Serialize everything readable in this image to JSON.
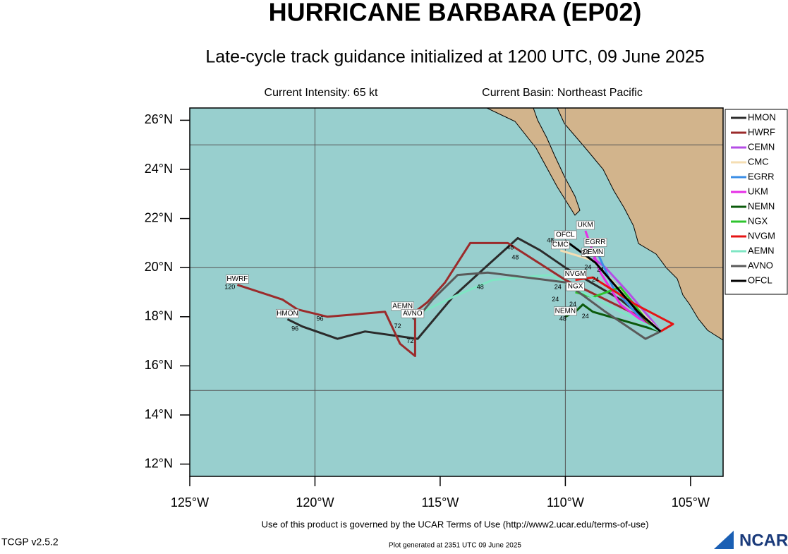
{
  "chart_data": {
    "type": "line",
    "title": "HURRICANE BARBARA (EP02)",
    "subtitle": "Late-cycle track guidance initialized at 1200 UTC, 09 June 2025",
    "info_left": "Current Intensity: 65 kt",
    "info_right": "Current Basin: Northeast Pacific",
    "footer": "Use of this product is governed by the UCAR Terms of Use (http://www2.ucar.edu/terms-of-use)",
    "version": "TCGP v2.5.2",
    "generated": "Plot generated at 2351 UTC   09 June 2025",
    "logo": "NCAR",
    "xlim": [
      -125,
      -103.7
    ],
    "ylim": [
      11.5,
      26.5
    ],
    "xticks": [
      {
        "value": -125,
        "label": "125°W"
      },
      {
        "value": -120,
        "label": "120°W"
      },
      {
        "value": -115,
        "label": "115°W"
      },
      {
        "value": -110,
        "label": "110°W"
      },
      {
        "value": -105,
        "label": "105°W"
      }
    ],
    "yticks": [
      {
        "value": 12,
        "label": "12°N"
      },
      {
        "value": 14,
        "label": "14°N"
      },
      {
        "value": 16,
        "label": "16°N"
      },
      {
        "value": 18,
        "label": "18°N"
      },
      {
        "value": 20,
        "label": "20°N"
      },
      {
        "value": 22,
        "label": "22°N"
      },
      {
        "value": 24,
        "label": "24°N"
      },
      {
        "value": 26,
        "label": "26°N"
      }
    ],
    "xgrid": [
      -120,
      -110
    ],
    "ygrid": [
      15,
      20,
      25
    ],
    "legend": "right",
    "series": [
      {
        "name": "HMON",
        "color": "#2b2b2b",
        "x": [
          -106.2,
          -107.8,
          -110.0,
          -111.0,
          -111.9,
          -113.1,
          -114.5,
          -115.9,
          -118.0,
          -119.1,
          -120.5,
          -121.1
        ],
        "values": [
          17.4,
          18.7,
          20.0,
          20.7,
          21.2,
          20.1,
          18.8,
          17.1,
          17.4,
          17.1,
          17.6,
          17.9
        ]
      },
      {
        "name": "HWRF",
        "color": "#9b2b2b",
        "x": [
          -106.2,
          -107.2,
          -108.6,
          -110.0,
          -112.3,
          -113.8,
          -114.8,
          -115.5,
          -116.0,
          -116.0,
          -116.6,
          -117.2,
          -119.5,
          -120.7,
          -121.3,
          -123.1
        ],
        "values": [
          17.4,
          18.1,
          18.8,
          19.5,
          21.0,
          21.0,
          19.4,
          18.6,
          18.2,
          16.4,
          16.9,
          18.2,
          18.0,
          18.3,
          18.7,
          19.3
        ]
      },
      {
        "name": "CEMN",
        "color": "#b44ee6",
        "x": [
          -106.2,
          -106.5,
          -107.5,
          -108.4,
          -108.9
        ],
        "values": [
          17.4,
          17.8,
          19.0,
          20.0,
          20.4
        ]
      },
      {
        "name": "CMC",
        "color": "#f5deb3",
        "x": [
          -106.2,
          -106.8,
          -107.8,
          -108.9,
          -110.2
        ],
        "values": [
          17.4,
          18.0,
          19.1,
          20.3,
          20.7
        ]
      },
      {
        "name": "EGRR",
        "color": "#3b8ee6",
        "x": [
          -106.2,
          -106.7,
          -108.1,
          -108.8
        ],
        "values": [
          17.4,
          17.6,
          19.2,
          20.8
        ]
      },
      {
        "name": "UKM",
        "color": "#e62ee6",
        "x": [
          -106.2,
          -106.5,
          -107.8,
          -108.6,
          -109.2
        ],
        "values": [
          17.4,
          17.5,
          18.5,
          19.8,
          21.5
        ]
      },
      {
        "name": "NEMN",
        "color": "#0b5a0b",
        "x": [
          -106.2,
          -107.2,
          -108.9,
          -109.3,
          -109.6,
          -110.0
        ],
        "values": [
          17.4,
          17.7,
          18.2,
          18.5,
          18.2,
          18.0
        ]
      },
      {
        "name": "NGX",
        "color": "#2ec42e",
        "x": [
          -106.2,
          -106.7,
          -107.8,
          -108.9,
          -109.6
        ],
        "values": [
          17.4,
          17.8,
          19.2,
          18.8,
          19.0
        ]
      },
      {
        "name": "NVGM",
        "color": "#e61414",
        "x": [
          -106.2,
          -105.7,
          -107.2,
          -108.9,
          -109.6
        ],
        "values": [
          17.4,
          17.7,
          18.5,
          19.6,
          19.5
        ]
      },
      {
        "name": "AEMN",
        "color": "#7fe6c4",
        "x": [
          -106.2,
          -107.8,
          -109.5,
          -110.6,
          -112.9,
          -114.5,
          -115.7,
          -116.5
        ],
        "values": [
          17.4,
          18.2,
          19.1,
          19.7,
          19.5,
          18.8,
          18.2,
          18.2
        ]
      },
      {
        "name": "AVNO",
        "color": "#5a5a5a",
        "x": [
          -106.2,
          -106.8,
          -108.4,
          -110.0,
          -113.1,
          -114.3,
          -115.3,
          -115.7,
          -116.1
        ],
        "values": [
          17.4,
          17.1,
          18.2,
          19.4,
          19.8,
          19.7,
          18.7,
          18.2,
          17.9
        ]
      },
      {
        "name": "OFCL",
        "color": "#000000",
        "x": [
          -106.2,
          -107.1,
          -108.8,
          -110.0
        ],
        "values": [
          17.4,
          18.2,
          20.2,
          21.1
        ]
      }
    ],
    "annotations": [
      {
        "text": "120",
        "x": -123.4,
        "y": 19.2
      },
      {
        "text": "96",
        "x": -119.8,
        "y": 17.9
      },
      {
        "text": "96",
        "x": -120.8,
        "y": 17.5
      },
      {
        "text": "72",
        "x": -116.7,
        "y": 17.6
      },
      {
        "text": "72",
        "x": -116.2,
        "y": 17.0
      },
      {
        "text": "48",
        "x": -112.2,
        "y": 20.8
      },
      {
        "text": "48",
        "x": -112.0,
        "y": 20.4
      },
      {
        "text": "48",
        "x": -113.4,
        "y": 19.2
      },
      {
        "text": "48",
        "x": -110.6,
        "y": 21.1
      },
      {
        "text": "48",
        "x": -110.1,
        "y": 17.9
      },
      {
        "text": "24",
        "x": -109.2,
        "y": 20.6
      },
      {
        "text": "24",
        "x": -109.1,
        "y": 20.0
      },
      {
        "text": "24",
        "x": -108.6,
        "y": 19.9
      },
      {
        "text": "24",
        "x": -110.4,
        "y": 18.7
      },
      {
        "text": "24",
        "x": -109.7,
        "y": 18.5
      },
      {
        "text": "24",
        "x": -109.2,
        "y": 18.0
      },
      {
        "text": "24",
        "x": -110.3,
        "y": 19.2
      },
      {
        "text": "24",
        "x": -108.8,
        "y": 19.5
      }
    ]
  }
}
